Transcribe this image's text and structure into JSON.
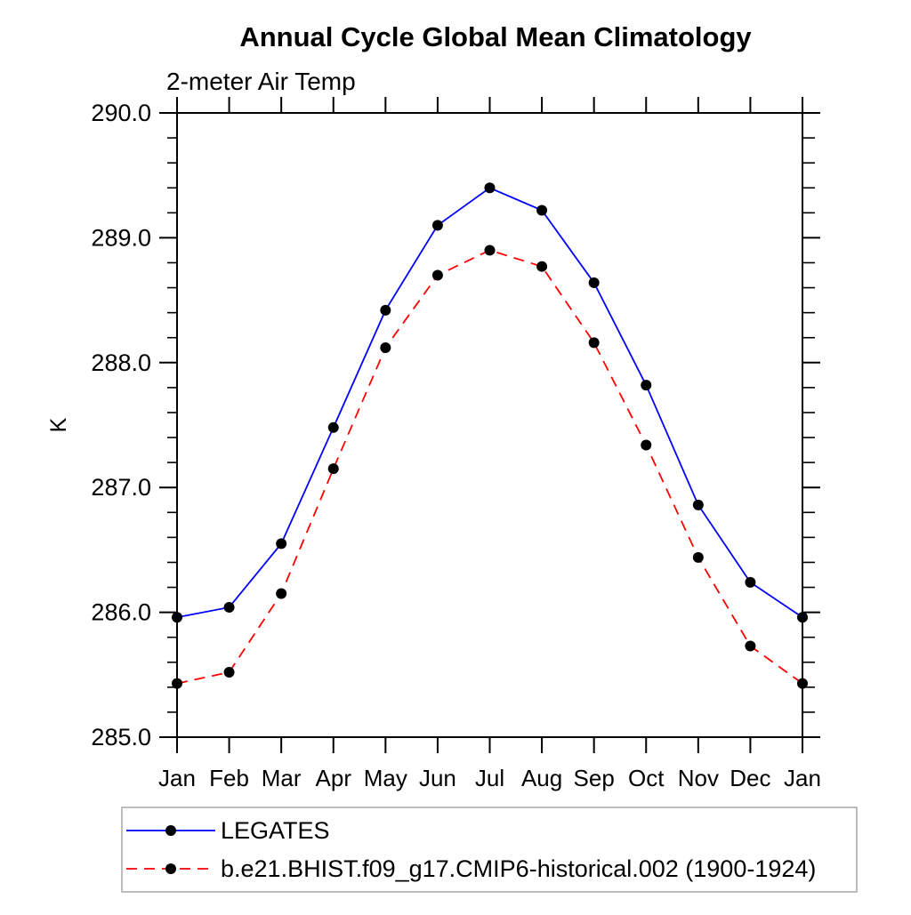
{
  "chart_data": {
    "type": "line",
    "title": "Annual Cycle Global Mean Climatology",
    "subtitle": "2-meter Air Temp",
    "ylabel": "K",
    "xlabel": "",
    "categories": [
      "Jan",
      "Feb",
      "Mar",
      "Apr",
      "May",
      "Jun",
      "Jul",
      "Aug",
      "Sep",
      "Oct",
      "Nov",
      "Dec",
      "Jan"
    ],
    "series": [
      {
        "name": "LEGATES",
        "color": "#0000ff",
        "line_style": "solid",
        "marker": "filled-circle",
        "marker_color": "#000000",
        "values": [
          285.96,
          286.04,
          286.55,
          287.48,
          288.42,
          289.1,
          289.4,
          289.22,
          288.64,
          287.82,
          286.86,
          286.24,
          285.96
        ]
      },
      {
        "name": "b.e21.BHIST.f09_g17.CMIP6-historical.002 (1900-1924)",
        "color": "#ff0000",
        "line_style": "dashed",
        "marker": "filled-circle",
        "marker_color": "#000000",
        "values": [
          285.43,
          285.52,
          286.15,
          287.15,
          288.12,
          288.7,
          288.9,
          288.77,
          288.16,
          287.34,
          286.44,
          285.73,
          285.43
        ]
      }
    ],
    "ylim": [
      285.0,
      290.0
    ],
    "ytick_major_step": 1.0,
    "ytick_minor_step": 0.2,
    "ytick_labels": [
      "285.0",
      "286.0",
      "287.0",
      "288.0",
      "289.0",
      "290.0"
    ],
    "grid": false,
    "legend_position": "bottom-left",
    "axis_color": "#000000",
    "legend_border_color": "#a6a6a6"
  }
}
